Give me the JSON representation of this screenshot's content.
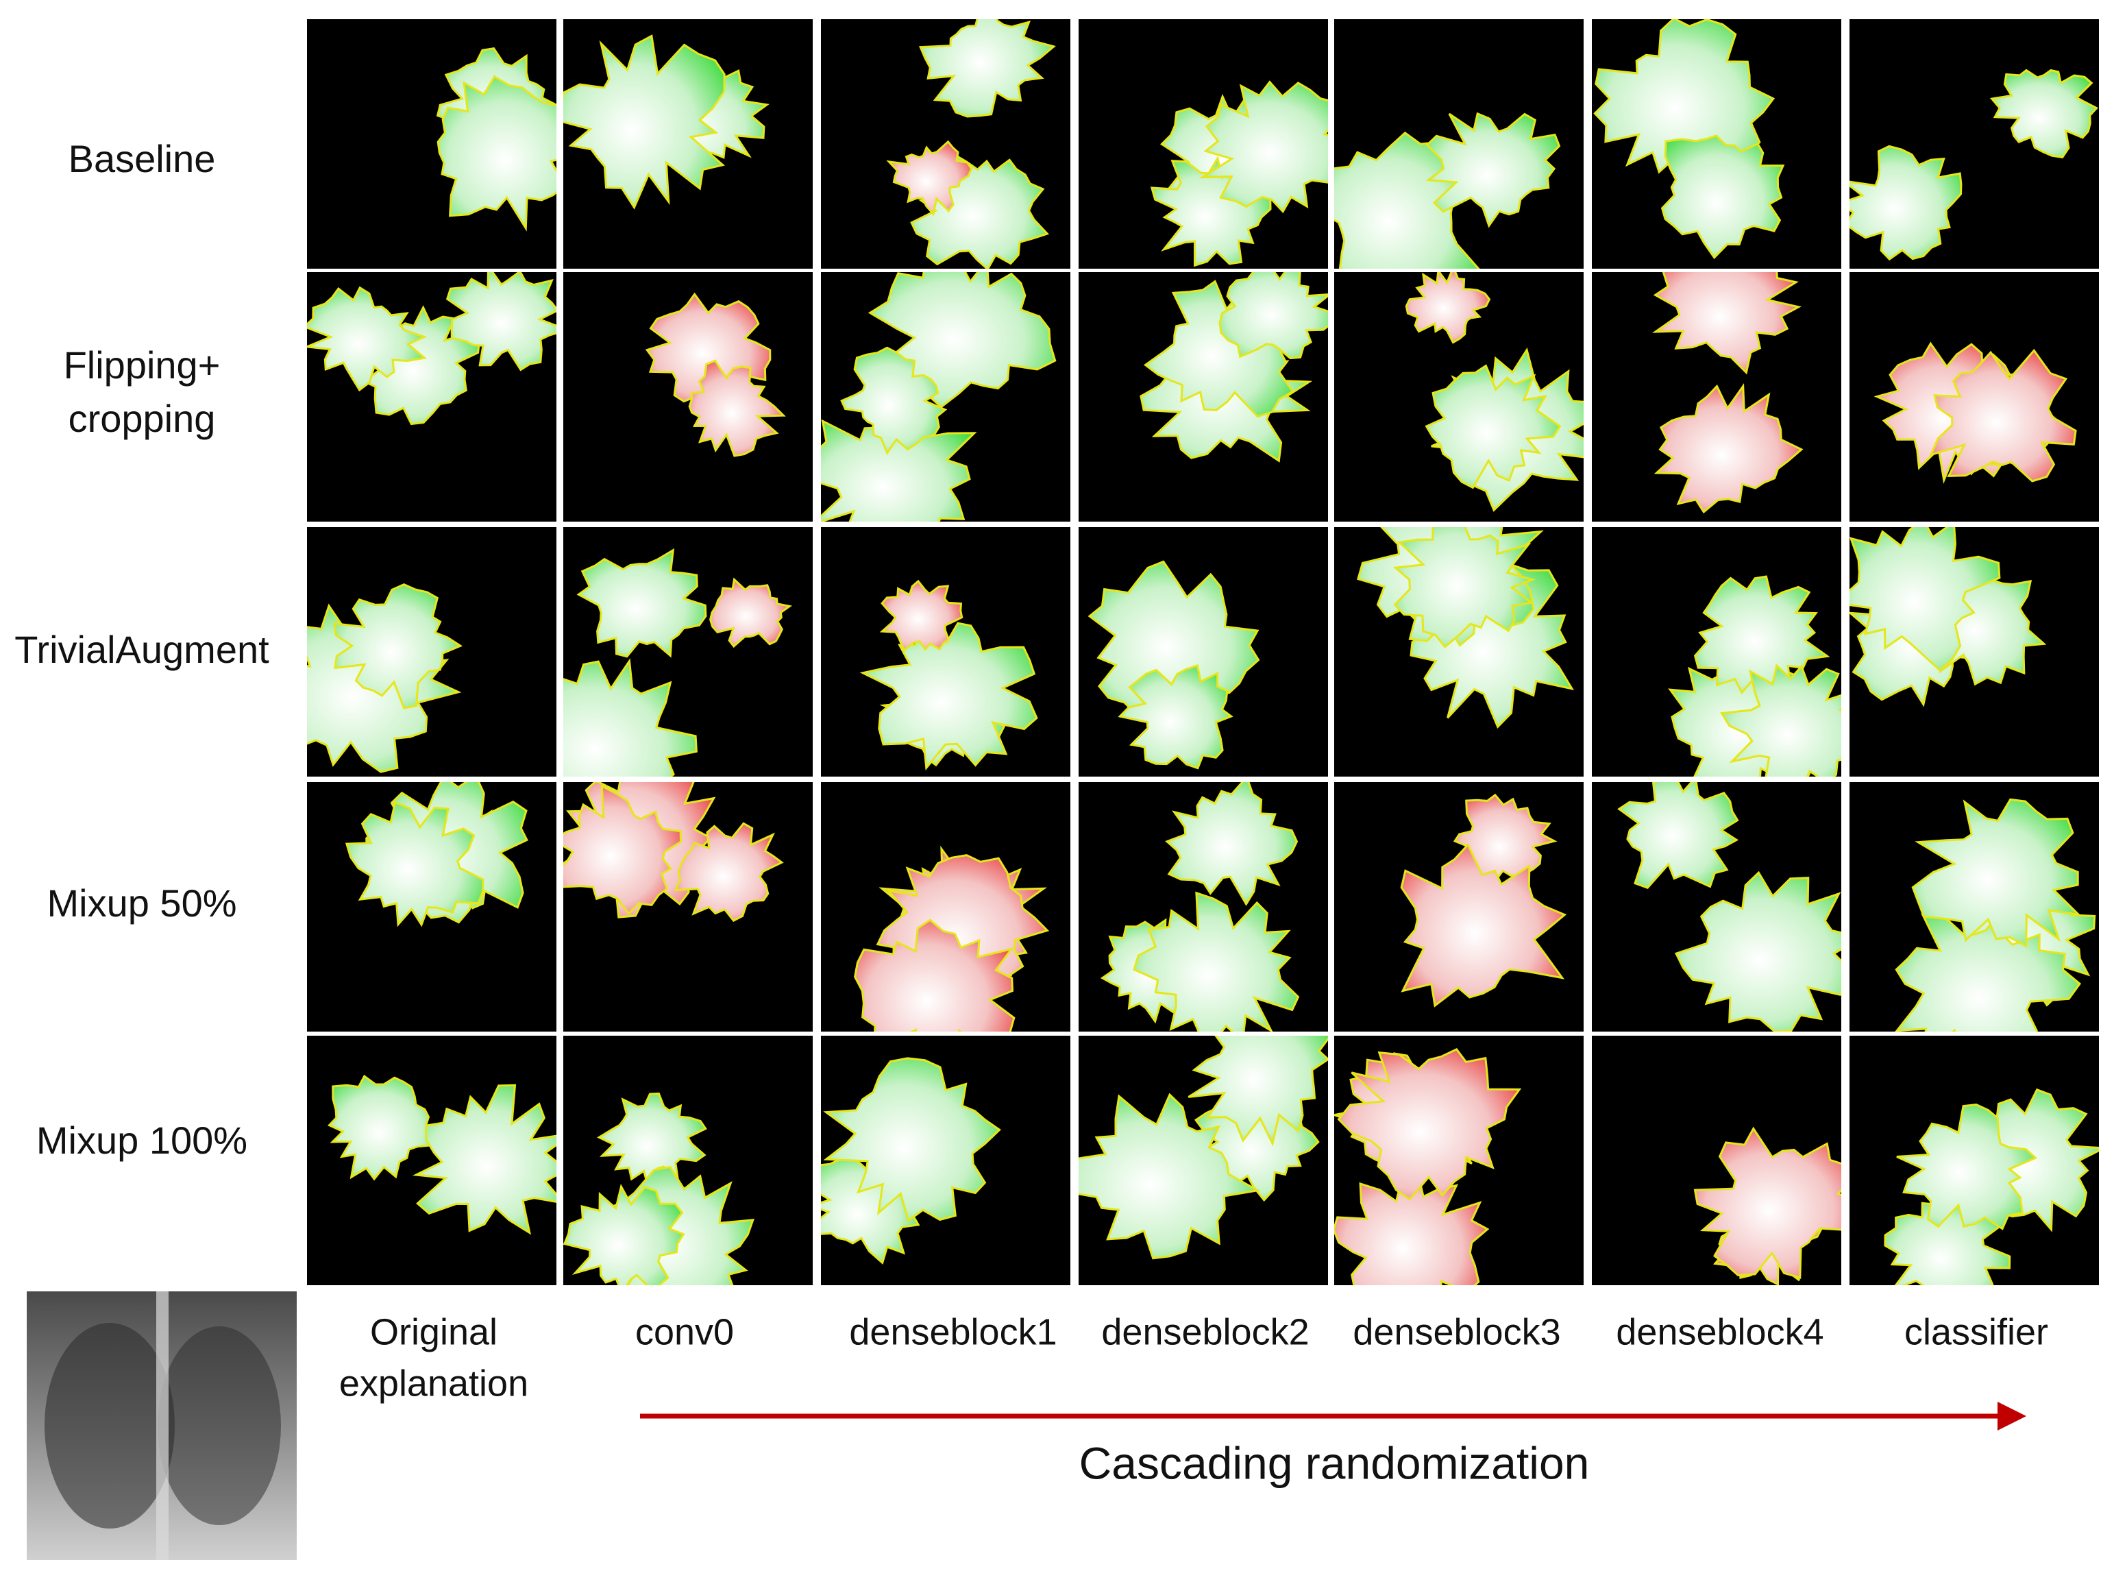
{
  "figure": {
    "rows": [
      [
        "Baseline"
      ],
      [
        "Flipping+",
        "cropping"
      ],
      [
        "TrivialAugment"
      ],
      [
        "Mixup 50%"
      ],
      [
        "Mixup 100%"
      ]
    ],
    "columns": [
      [
        "Original",
        "explanation"
      ],
      [
        "conv0"
      ],
      [
        "denseblock1"
      ],
      [
        "denseblock2"
      ],
      [
        "denseblock3"
      ],
      [
        "denseblock4"
      ],
      [
        "classifier"
      ]
    ],
    "arrow_label": "Cascading randomization"
  }
}
